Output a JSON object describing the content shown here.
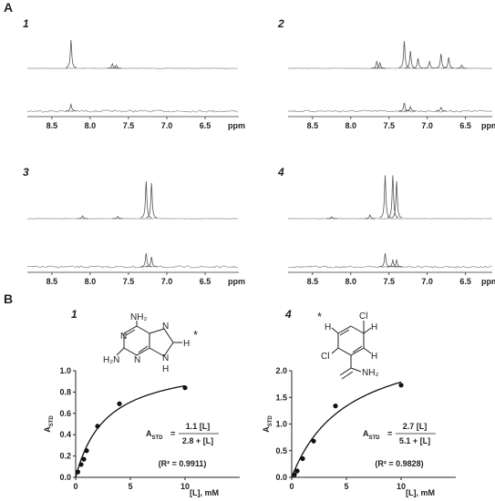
{
  "panel_labels": [
    "A",
    "B"
  ],
  "chart_data": [
    {
      "type": "spectrum",
      "title": "1",
      "xlabel": "ppm",
      "xlim": [
        8.82,
        6.06
      ],
      "xticks": [
        8.5,
        {
          "value": 8,
          "label": "8.0"
        },
        7.5,
        {
          "value": 7,
          "label": "7.0"
        },
        6.5
      ],
      "reference": {
        "x": [
          8.25,
          7.71,
          7.66
        ],
        "values": [
          0.62,
          0.1,
          0.07
        ]
      },
      "std": {
        "x": [
          8.25
        ],
        "values": [
          0.15
        ]
      }
    },
    {
      "type": "spectrum",
      "title": "2",
      "xlabel": "ppm",
      "xlim": [
        8.82,
        6.15
      ],
      "xticks": [
        8.5,
        {
          "value": 8,
          "label": "8.0"
        },
        7.5,
        {
          "value": 7,
          "label": "7.0"
        },
        6.5
      ],
      "reference": {
        "x": [
          7.66,
          7.62,
          7.3,
          7.22,
          7.12,
          6.97,
          6.82,
          6.72,
          6.55
        ],
        "values": [
          0.15,
          0.12,
          0.6,
          0.38,
          0.22,
          0.15,
          0.32,
          0.24,
          0.07
        ]
      },
      "std": {
        "x": [
          7.3,
          7.22,
          6.82
        ],
        "values": [
          0.18,
          0.1,
          0.08
        ]
      }
    },
    {
      "type": "spectrum",
      "title": "3",
      "xlabel": "ppm",
      "xlim": [
        8.82,
        6.06
      ],
      "xticks": [
        8.5,
        {
          "value": 8,
          "label": "8.0"
        },
        7.5,
        {
          "value": 7,
          "label": "7.0"
        },
        6.5
      ],
      "reference": {
        "x": [
          8.1,
          7.64,
          7.27,
          7.2
        ],
        "values": [
          0.06,
          0.05,
          0.82,
          0.78
        ]
      },
      "std": {
        "x": [
          7.27,
          7.2
        ],
        "values": [
          0.3,
          0.22
        ]
      }
    },
    {
      "type": "spectrum",
      "title": "4",
      "xlabel": "ppm",
      "xlim": [
        8.82,
        6.15
      ],
      "xticks": [
        8.5,
        {
          "value": 8,
          "label": "8.0"
        },
        7.5,
        {
          "value": 7,
          "label": "7.0"
        },
        6.5
      ],
      "reference": {
        "x": [
          8.25,
          7.75,
          7.55,
          7.45,
          7.4
        ],
        "values": [
          0.04,
          0.08,
          0.95,
          0.95,
          0.82
        ]
      },
      "std": {
        "x": [
          7.55,
          7.45,
          7.4
        ],
        "values": [
          0.3,
          0.15,
          0.15
        ]
      }
    },
    {
      "type": "scatter",
      "title": "1",
      "xlabel": "[L], mM",
      "ylabel": {
        "main": "A",
        "sub": "STD"
      },
      "xlim": [
        0,
        15
      ],
      "ylim": [
        0,
        1
      ],
      "xticks": [
        0,
        5,
        10
      ],
      "yticks": [
        {
          "value": 0,
          "label": "0.0"
        },
        0.2,
        0.4,
        0.6,
        0.8,
        {
          "value": 1,
          "label": "1.0"
        }
      ],
      "x": [
        0.2,
        0.5,
        0.75,
        1,
        2,
        4,
        10
      ],
      "values": [
        0.05,
        0.12,
        0.17,
        0.25,
        0.48,
        0.69,
        0.84
      ],
      "fit": {
        "lhs": "A",
        "lhs_sub": "STD",
        "eq": "=",
        "numerator": {
          "value": 1.1,
          "label": "1.1 [L]"
        },
        "denominator": {
          "value": 2.8,
          "label": "2.8 + [L]"
        },
        "r2": "(R² = 0.9911)"
      },
      "structure": [
        "NH₂",
        "N",
        "N",
        "N",
        "H",
        "*",
        "H₂N",
        "N",
        "H"
      ]
    },
    {
      "type": "scatter",
      "title": "4",
      "xlabel": "[L], mM",
      "ylabel": {
        "main": "A",
        "sub": "STD"
      },
      "xlim": [
        0,
        15
      ],
      "ylim": [
        0,
        2
      ],
      "xticks": [
        0,
        5,
        10
      ],
      "yticks": [
        {
          "value": 0,
          "label": "0.0"
        },
        0.5,
        {
          "value": 1,
          "label": "1.0"
        },
        1.5,
        {
          "value": 2,
          "label": "2.0"
        }
      ],
      "x": [
        0.25,
        0.5,
        1,
        2,
        4,
        10
      ],
      "values": [
        0.05,
        0.12,
        0.35,
        0.68,
        1.34,
        1.73
      ],
      "fit": {
        "lhs": "A",
        "lhs_sub": "STD",
        "eq": "=",
        "numerator": {
          "value": 2.7,
          "label": "2.7 [L]"
        },
        "denominator": {
          "value": 5.1,
          "label": "5.1 + [L]"
        },
        "r2": "(R² = 0.9828)"
      },
      "structure": [
        "Cl",
        "H",
        "*",
        "H",
        "H",
        "Cl",
        "NH₂"
      ]
    }
  ]
}
